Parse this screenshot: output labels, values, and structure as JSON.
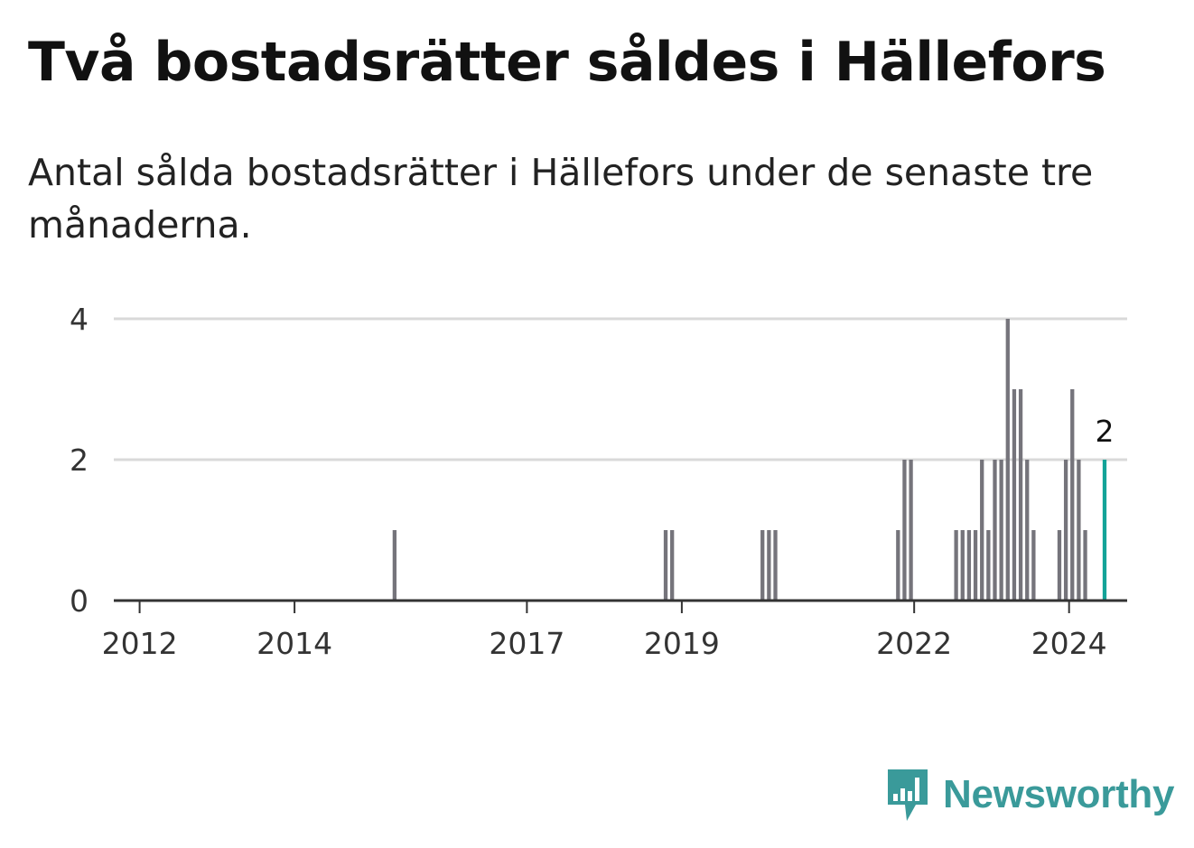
{
  "title": "Två bostadsrätter såldes i Hällefors",
  "subtitle": "Antal sålda bostadsrätter i Hällefors under de senaste tre månaderna.",
  "brand": {
    "name": "Newsworthy",
    "icon": "newsworthy-chart-bubble-icon",
    "color": "#3a9a9a"
  },
  "colors": {
    "bar": "#75747b",
    "highlight": "#13a398",
    "grid": "#d9d9d9",
    "axis": "#333333"
  },
  "chart_data": {
    "type": "bar",
    "title": "Två bostadsrätter såldes i Hällefors",
    "subtitle": "Antal sålda bostadsrätter i Hällefors under de senaste tre månaderna.",
    "xlabel": "",
    "ylabel": "",
    "ylim": [
      0,
      4
    ],
    "yticks": [
      0,
      2,
      4
    ],
    "xlim": [
      "2011-09",
      "2024-10"
    ],
    "xticks": [
      "2012",
      "2014",
      "2017",
      "2019",
      "2022",
      "2024"
    ],
    "grid": true,
    "bar_period": "quarter",
    "series": [
      {
        "x": [
          "2015-04",
          "2018-10",
          "2018-11",
          "2020-01",
          "2020-02",
          "2020-03",
          "2021-10",
          "2021-11",
          "2021-12",
          "2022-07",
          "2022-08",
          "2022-09",
          "2022-10",
          "2022-11",
          "2022-12",
          "2023-01",
          "2023-02",
          "2023-03",
          "2023-04",
          "2023-05",
          "2023-06",
          "2023-07",
          "2023-08",
          "2023-11",
          "2023-12",
          "2024-01",
          "2024-02",
          "2024-03",
          "2024-06"
        ],
        "values": [
          1,
          1,
          1,
          1,
          1,
          1,
          1,
          2,
          2,
          1,
          1,
          1,
          1,
          2,
          1,
          2,
          2,
          4,
          3,
          3,
          2,
          1,
          0,
          1,
          2,
          3,
          2,
          1,
          2
        ]
      }
    ],
    "highlight": {
      "x": "2024-06",
      "value": 2,
      "label": "2"
    }
  }
}
